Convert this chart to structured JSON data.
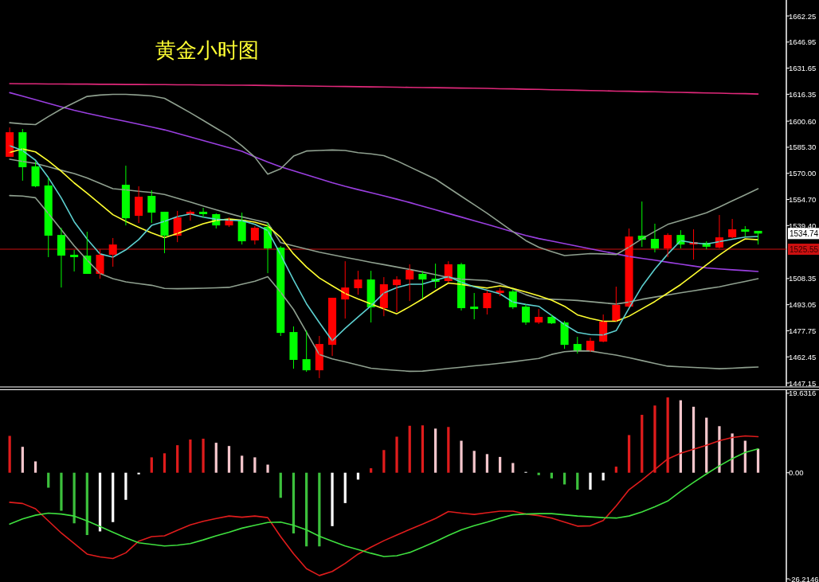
{
  "chart_data": [
    {
      "type": "candlestick",
      "title": "黄金小时图",
      "categories": [
        null,
        null,
        null,
        null,
        null,
        null,
        null,
        null,
        null,
        null,
        null,
        null,
        null,
        null,
        null,
        null,
        null,
        null,
        null,
        null,
        null,
        null,
        null,
        null,
        null,
        null,
        null,
        null,
        null,
        null,
        null,
        null,
        null,
        null,
        null,
        null,
        null,
        null,
        null,
        null,
        null,
        null,
        null,
        null,
        null,
        null,
        null,
        null,
        null,
        null,
        null,
        null,
        null,
        null,
        null,
        null,
        null,
        null,
        null
      ],
      "ohlc": [
        [
          1579.7,
          1596.9,
          1579.7,
          1594.1
        ],
        [
          1594.1,
          1596.0,
          1565.7,
          1573.6
        ],
        [
          1574.1,
          1576.9,
          1561.9,
          1562.4
        ],
        [
          1562.9,
          1567.5,
          1520.9,
          1533.5
        ],
        [
          1533.9,
          1538.1,
          1503.1,
          1521.8
        ],
        [
          1522.3,
          1525.1,
          1512.5,
          1520.9
        ],
        [
          1521.8,
          1535.8,
          1511.1,
          1511.1
        ],
        [
          1511.1,
          1525.5,
          1508.3,
          1522.3
        ],
        [
          1522.3,
          1532.1,
          1515.3,
          1528.3
        ],
        [
          1563.3,
          1574.5,
          1539.5,
          1543.7
        ],
        [
          1545.1,
          1562.4,
          1540.9,
          1556.3
        ],
        [
          1556.8,
          1560.1,
          1540.9,
          1547.0
        ],
        [
          1547.5,
          1547.5,
          1523.2,
          1533.5
        ],
        [
          1533.5,
          1548.0,
          1529.7,
          1544.2
        ],
        [
          1546.1,
          1548.4,
          1542.3,
          1547.5
        ],
        [
          1547.5,
          1549.8,
          1544.2,
          1546.1
        ],
        [
          1546.1,
          1546.5,
          1537.7,
          1539.5
        ],
        [
          1539.5,
          1544.2,
          1538.6,
          1543.3
        ],
        [
          1542.8,
          1547.0,
          1528.3,
          1530.2
        ],
        [
          1530.7,
          1539.1,
          1528.3,
          1538.1
        ],
        [
          1538.6,
          1540.9,
          1511.5,
          1526.0
        ],
        [
          1526.5,
          1527.4,
          1474.7,
          1476.5
        ],
        [
          1477.0,
          1480.3,
          1455.5,
          1460.7
        ],
        [
          1461.1,
          1477.9,
          1453.7,
          1454.6
        ],
        [
          1454.6,
          1474.7,
          1450.0,
          1470.0
        ],
        [
          1469.5,
          1497.1,
          1463.0,
          1497.1
        ],
        [
          1496.1,
          1518.5,
          1484.9,
          1503.1
        ],
        [
          1502.7,
          1512.9,
          1498.9,
          1507.8
        ],
        [
          1507.8,
          1512.9,
          1482.6,
          1491.5
        ],
        [
          1491.0,
          1509.2,
          1486.3,
          1505.0
        ],
        [
          1504.5,
          1509.7,
          1488.7,
          1507.8
        ],
        [
          1507.8,
          1516.7,
          1495.2,
          1513.4
        ],
        [
          1511.1,
          1512.9,
          1496.6,
          1507.8
        ],
        [
          1508.3,
          1517.1,
          1502.7,
          1506.4
        ],
        [
          1506.9,
          1518.5,
          1505.9,
          1516.7
        ],
        [
          1516.7,
          1517.6,
          1489.6,
          1491.0
        ],
        [
          1491.9,
          1499.9,
          1484.5,
          1490.5
        ],
        [
          1491.0,
          1501.3,
          1487.3,
          1499.9
        ],
        [
          1499.9,
          1502.7,
          1498.0,
          1501.3
        ],
        [
          1500.8,
          1502.2,
          1490.5,
          1491.5
        ],
        [
          1491.9,
          1493.3,
          1481.2,
          1482.6
        ],
        [
          1482.6,
          1490.5,
          1481.7,
          1485.9
        ],
        [
          1485.9,
          1487.3,
          1481.7,
          1482.1
        ],
        [
          1482.6,
          1483.5,
          1467.2,
          1469.5
        ],
        [
          1470.0,
          1474.2,
          1464.4,
          1465.8
        ],
        [
          1465.8,
          1473.7,
          1465.3,
          1471.9
        ],
        [
          1471.4,
          1487.3,
          1471.0,
          1483.1
        ],
        [
          1483.5,
          1503.6,
          1483.1,
          1492.9
        ],
        [
          1491.9,
          1537.7,
          1491.5,
          1533.0
        ],
        [
          1533.5,
          1553.5,
          1526.9,
          1531.1
        ],
        [
          1531.6,
          1540.5,
          1523.7,
          1526.0
        ],
        [
          1526.0,
          1534.9,
          1520.9,
          1533.9
        ],
        [
          1533.9,
          1536.7,
          1526.0,
          1528.3
        ],
        [
          1528.8,
          1537.2,
          1519.5,
          1529.3
        ],
        [
          1529.3,
          1530.2,
          1525.5,
          1527.0
        ],
        [
          1526.5,
          1545.6,
          1526.0,
          1532.5
        ],
        [
          1532.5,
          1543.3,
          1532.1,
          1537.2
        ],
        [
          1537.2,
          1539.1,
          1532.9,
          1535.8
        ],
        [
          1536.3,
          1536.3,
          1528.3,
          1534.74
        ]
      ],
      "colors": [
        "#ff0000",
        "#00ff00",
        "#00ff00",
        "#00ff00",
        "#00ff00",
        "#00ff00",
        "#00ff00",
        "#ff0000",
        "#ff0000",
        "#00ff00",
        "#ff0000",
        "#00ff00",
        "#00ff00",
        "#ff0000",
        "#ff0000",
        "#00ff00",
        "#00ff00",
        "#ff0000",
        "#00ff00",
        "#ff0000",
        "#00ff00",
        "#00ff00",
        "#00ff00",
        "#00ff00",
        "#ff0000",
        "#ff0000",
        "#ff0000",
        "#ff0000",
        "#00ff00",
        "#ff0000",
        "#ff0000",
        "#ff0000",
        "#00ff00",
        "#00ff00",
        "#ff0000",
        "#00ff00",
        "#00ff00",
        "#ff0000",
        "#ff0000",
        "#00ff00",
        "#00ff00",
        "#ff0000",
        "#00ff00",
        "#00ff00",
        "#00ff00",
        "#ff0000",
        "#ff0000",
        "#ff0000",
        "#ff0000",
        "#00ff00",
        "#00ff00",
        "#ff0000",
        "#00ff00",
        "#ff0000",
        "#00ff00",
        "#ff0000",
        "#ff0000",
        "#00ff00",
        "#00ff00"
      ],
      "series": [
        {
          "type": "line",
          "color": "#e0287a",
          "values": [
            1622.6,
            1622.5,
            1622.5,
            1622.4,
            1622.4,
            1622.3,
            1622.3,
            1622.2,
            1622.2,
            1622.1,
            1622.1,
            1622.0,
            1622.0,
            1621.9,
            1621.9,
            1621.8,
            1621.8,
            1621.7,
            1621.7,
            1621.6,
            1621.5,
            1621.4,
            1621.3,
            1621.2,
            1621.1,
            1621.0,
            1620.9,
            1620.8,
            1620.7,
            1620.6,
            1620.5,
            1620.4,
            1620.3,
            1620.2,
            1620.1,
            1620.0,
            1619.9,
            1619.8,
            1619.6,
            1619.5,
            1619.3,
            1619.2,
            1619.0,
            1618.9,
            1618.7,
            1618.5,
            1618.4,
            1618.2,
            1618.1,
            1617.9,
            1617.8,
            1617.6,
            1617.5,
            1617.3,
            1617.1,
            1617.0,
            1616.8,
            1616.7,
            1616.5
          ]
        },
        {
          "type": "line",
          "color": "#9a3fe0",
          "values": [
            1617.3,
            1615.3,
            1613.2,
            1611.1,
            1609.0,
            1607.0,
            1605.2,
            1603.6,
            1602.0,
            1600.4,
            1598.8,
            1597.2,
            1595.5,
            1593.4,
            1591.3,
            1589.2,
            1587.1,
            1585.0,
            1582.9,
            1579.7,
            1576.6,
            1573.8,
            1571.5,
            1569.2,
            1566.8,
            1564.5,
            1562.4,
            1560.5,
            1558.7,
            1556.8,
            1554.9,
            1552.9,
            1550.8,
            1548.7,
            1546.5,
            1544.4,
            1542.2,
            1540.1,
            1537.9,
            1535.7,
            1533.6,
            1531.8,
            1530.3,
            1528.8,
            1527.3,
            1525.8,
            1524.3,
            1522.8,
            1521.3,
            1520.2,
            1519.1,
            1517.9,
            1516.8,
            1515.7,
            1514.6,
            1514.0,
            1513.5,
            1513.0,
            1512.5
          ]
        },
        {
          "type": "line",
          "color": "#8fa08f",
          "values": [
            1599.7,
            1599.0,
            1598.6,
            1603.3,
            1607.7,
            1611.4,
            1615.1,
            1615.9,
            1616.3,
            1616.3,
            1615.9,
            1615.4,
            1614.0,
            1609.8,
            1605.5,
            1601.0,
            1596.5,
            1592.0,
            1586.2,
            1579.5,
            1569.5,
            1572.7,
            1580.1,
            1583.1,
            1583.4,
            1583.7,
            1583.4,
            1582.1,
            1581.4,
            1580.4,
            1577.4,
            1573.8,
            1570.2,
            1566.6,
            1561.6,
            1556.6,
            1551.6,
            1546.6,
            1541.2,
            1535.9,
            1530.6,
            1526.7,
            1524.2,
            1521.8,
            1522.4,
            1523.0,
            1522.8,
            1522.4,
            1526.8,
            1531.7,
            1536.0,
            1540.1,
            1542.4,
            1544.6,
            1546.9,
            1550.3,
            1553.9,
            1557.4,
            1561.0
          ]
        },
        {
          "type": "line",
          "color": "#8fa08f",
          "values": [
            1578.3,
            1577.0,
            1575.8,
            1573.8,
            1571.8,
            1569.9,
            1567.3,
            1564.2,
            1561.0,
            1560.3,
            1559.5,
            1558.8,
            1557.6,
            1555.4,
            1553.2,
            1550.9,
            1548.7,
            1546.5,
            1544.5,
            1542.7,
            1541.0,
            1529.4,
            1527.5,
            1525.7,
            1523.8,
            1522.3,
            1520.8,
            1519.4,
            1517.9,
            1516.5,
            1515.1,
            1513.7,
            1512.2,
            1510.6,
            1509.0,
            1508.0,
            1507.6,
            1507.2,
            1505.5,
            1502.2,
            1498.9,
            1496.5,
            1496.2,
            1495.9,
            1495.5,
            1494.8,
            1494.1,
            1493.4,
            1494.6,
            1496.2,
            1497.5,
            1498.7,
            1500.0,
            1501.2,
            1502.4,
            1503.5,
            1505.1,
            1506.7,
            1508.3
          ]
        },
        {
          "type": "line",
          "color": "#8fa08f",
          "values": [
            1557.0,
            1556.7,
            1555.7,
            1546.4,
            1537.0,
            1527.5,
            1519.2,
            1511.3,
            1508.3,
            1506.4,
            1505.4,
            1504.4,
            1502.6,
            1502.4,
            1502.5,
            1502.7,
            1502.9,
            1503.2,
            1505.0,
            1506.8,
            1509.5,
            1500.4,
            1490.2,
            1477.0,
            1463.8,
            1461.3,
            1459.5,
            1457.7,
            1455.8,
            1455.1,
            1454.5,
            1454.0,
            1454.1,
            1454.9,
            1455.7,
            1456.4,
            1457.2,
            1457.9,
            1458.7,
            1459.6,
            1460.6,
            1461.5,
            1463.9,
            1465.5,
            1466.0,
            1465.9,
            1464.7,
            1463.5,
            1462.0,
            1460.3,
            1458.6,
            1457.0,
            1456.6,
            1456.3,
            1455.9,
            1455.5,
            1455.8,
            1456.2,
            1456.5
          ]
        },
        {
          "type": "line",
          "color": "#ffff30",
          "values": [
            1582.2,
            1584.3,
            1582.6,
            1577.3,
            1571.2,
            1564.4,
            1558.4,
            1552.1,
            1545.8,
            1541.9,
            1538.4,
            1535.1,
            1532.3,
            1534.8,
            1537.7,
            1540.5,
            1542.4,
            1543.3,
            1542.6,
            1541.4,
            1539.2,
            1532.5,
            1522.8,
            1515.1,
            1508.7,
            1504.1,
            1499.6,
            1496.4,
            1493.5,
            1490.6,
            1487.7,
            1491.9,
            1496.4,
            1501.2,
            1505.7,
            1504.9,
            1503.8,
            1502.8,
            1504.1,
            1502.6,
            1500.5,
            1498.3,
            1495.7,
            1492.1,
            1487.1,
            1485.0,
            1483.3,
            1483.3,
            1486.3,
            1490.6,
            1494.9,
            1499.9,
            1504.8,
            1510.6,
            1516.4,
            1522.1,
            1527.4,
            1531.6,
            1531.1
          ]
        },
        {
          "type": "line",
          "color": "#5ccfcf",
          "values": [
            1586.2,
            1583.4,
            1577.7,
            1567.5,
            1555.6,
            1541.7,
            1531.5,
            1522.8,
            1520.9,
            1525.2,
            1531.2,
            1539.5,
            1541.9,
            1544.7,
            1546.2,
            1544.3,
            1543.1,
            1542.6,
            1542.3,
            1540.1,
            1536.5,
            1522.3,
            1507.5,
            1493.6,
            1482.5,
            1471.9,
            1479.2,
            1485.8,
            1492.4,
            1499.9,
            1503.0,
            1505.0,
            1505.1,
            1507.4,
            1509.6,
            1506.2,
            1503.5,
            1501.5,
            1499.4,
            1494.6,
            1493.2,
            1492.1,
            1486.8,
            1481.4,
            1476.8,
            1475.5,
            1475.3,
            1477.8,
            1491.0,
            1503.7,
            1513.9,
            1522.7,
            1530.6,
            1529.3,
            1528.6,
            1530.0,
            1531.4,
            1532.7,
            1533.0
          ]
        }
      ],
      "ylim": [
        1445.3,
        1671.6
      ],
      "yticks": [
        {
          "value": 1662.25,
          "label": "1662.25"
        },
        {
          "value": 1646.95,
          "label": "1646.95"
        },
        {
          "value": 1631.65,
          "label": "1631.65"
        },
        {
          "value": 1616.35,
          "label": "1616.35"
        },
        {
          "value": 1600.6,
          "label": "1600.60"
        },
        {
          "value": 1585.3,
          "label": "1585.30"
        },
        {
          "value": 1570.0,
          "label": "1570.00"
        },
        {
          "value": 1554.7,
          "label": "1554.70"
        },
        {
          "value": 1539.4,
          "label": "1539.40"
        },
        {
          "value": 1508.35,
          "label": "1508.35"
        },
        {
          "value": 1493.05,
          "label": "1493.05"
        },
        {
          "value": 1477.75,
          "label": "1477.75"
        },
        {
          "value": 1462.45,
          "label": "1462.45"
        },
        {
          "value": 1447.15,
          "label": "1447.15"
        }
      ],
      "tick_labels": "y",
      "ref_lines": [
        {
          "axis": "y",
          "value": 1525.55,
          "label": "1525.55",
          "color": "#cc1010"
        }
      ],
      "annotations": [
        "1534.74"
      ]
    },
    {
      "type": "bar",
      "categories": [
        null,
        null,
        null,
        null,
        null,
        null,
        null,
        null,
        null,
        null,
        null,
        null,
        null,
        null,
        null,
        null,
        null,
        null,
        null,
        null,
        null,
        null,
        null,
        null,
        null,
        null,
        null,
        null,
        null,
        null,
        null,
        null,
        null,
        null,
        null,
        null,
        null,
        null,
        null,
        null,
        null,
        null,
        null,
        null,
        null,
        null,
        null,
        null,
        null,
        null,
        null,
        null,
        null,
        null,
        null,
        null,
        null,
        null,
        null
      ],
      "values": [
        9.1,
        6.4,
        2.8,
        -3.7,
        -9.4,
        -12.5,
        -15.4,
        -14.5,
        -12.2,
        -6.7,
        -0.4,
        3.8,
        4.8,
        6.8,
        8.2,
        8.4,
        7.4,
        6.6,
        4.2,
        3.8,
        2.0,
        -6.2,
        -15.0,
        -18.2,
        -18.2,
        -13.2,
        -7.5,
        -1.7,
        1.1,
        5.6,
        8.9,
        11.6,
        11.7,
        10.9,
        11.3,
        7.9,
        5.4,
        4.6,
        3.9,
        2.4,
        0.2,
        -0.6,
        -1.4,
        -2.9,
        -4.2,
        -4.2,
        -1.9,
        1.5,
        9.3,
        14.3,
        16.6,
        18.6,
        17.9,
        16.3,
        13.6,
        11.5,
        9.7,
        7.9,
        5.9
      ],
      "colors": [
        "#e01c1c",
        "#f5c6cc",
        "#f5c6cc",
        "#3cc03c",
        "#3cc03c",
        "#3cc03c",
        "#3cc03c",
        "#ffffff",
        "#ffffff",
        "#ffffff",
        "#ffffff",
        "#e01c1c",
        "#e01c1c",
        "#e01c1c",
        "#e01c1c",
        "#e01c1c",
        "#f5c6cc",
        "#f5c6cc",
        "#f5c6cc",
        "#f5c6cc",
        "#f5c6cc",
        "#3cc03c",
        "#3cc03c",
        "#3cc03c",
        "#3cc03c",
        "#ffffff",
        "#ffffff",
        "#ffffff",
        "#e01c1c",
        "#e01c1c",
        "#e01c1c",
        "#e01c1c",
        "#e01c1c",
        "#f5c6cc",
        "#e01c1c",
        "#f5c6cc",
        "#f5c6cc",
        "#f5c6cc",
        "#f5c6cc",
        "#f5c6cc",
        "#ffffff",
        "#3cc03c",
        "#3cc03c",
        "#3cc03c",
        "#3cc03c",
        "#ffffff",
        "#ffffff",
        "#e01c1c",
        "#e01c1c",
        "#e01c1c",
        "#e01c1c",
        "#e01c1c",
        "#f5c6cc",
        "#f5c6cc",
        "#f5c6cc",
        "#f5c6cc",
        "#f5c6cc",
        "#f5c6cc",
        "#f5c6cc"
      ],
      "series": [
        {
          "type": "line",
          "color": "#e01c1c",
          "values": [
            -7.3,
            -7.6,
            -8.9,
            -11.9,
            -14.9,
            -17.5,
            -20.1,
            -20.8,
            -21.2,
            -19.8,
            -16.9,
            -15.8,
            -15.6,
            -14.2,
            -12.9,
            -12.0,
            -11.3,
            -10.7,
            -11.0,
            -10.7,
            -11.1,
            -15.8,
            -20.0,
            -23.7,
            -25.4,
            -24.4,
            -22.4,
            -20.1,
            -18.4,
            -16.8,
            -15.4,
            -14.0,
            -12.7,
            -11.3,
            -9.6,
            -10.0,
            -10.3,
            -9.9,
            -9.5,
            -9.5,
            -10.2,
            -10.6,
            -11.2,
            -12.2,
            -13.2,
            -13.1,
            -11.8,
            -8.2,
            -4.2,
            -1.8,
            0.8,
            3.4,
            4.8,
            5.8,
            6.8,
            7.9,
            8.7,
            9.1,
            8.9
          ]
        },
        {
          "type": "line",
          "color": "#3fe03f",
          "values": [
            -12.7,
            -11.4,
            -10.5,
            -10.0,
            -10.2,
            -10.7,
            -11.9,
            -13.3,
            -14.7,
            -16.1,
            -17.3,
            -17.7,
            -18.1,
            -17.9,
            -17.5,
            -16.6,
            -15.6,
            -14.7,
            -13.7,
            -13.0,
            -12.3,
            -12.2,
            -13.0,
            -14.1,
            -15.7,
            -16.9,
            -18.1,
            -19.0,
            -19.9,
            -20.7,
            -20.5,
            -19.7,
            -18.4,
            -17.0,
            -15.5,
            -14.1,
            -13.1,
            -12.2,
            -11.2,
            -10.4,
            -10.2,
            -10.1,
            -10.1,
            -10.4,
            -10.7,
            -10.9,
            -11.1,
            -11.2,
            -10.7,
            -9.7,
            -8.4,
            -7.0,
            -4.6,
            -2.4,
            -0.3,
            1.7,
            3.5,
            5.0,
            5.9
          ]
        }
      ],
      "ylim": [
        -27.0,
        20.6
      ],
      "yticks": [
        {
          "value": 19.6316,
          "label": "19.6316"
        },
        {
          "value": 0,
          "label": "0.00"
        },
        {
          "value": -26.2146,
          "label": "-26.2146"
        }
      ],
      "tick_labels": "y"
    }
  ]
}
